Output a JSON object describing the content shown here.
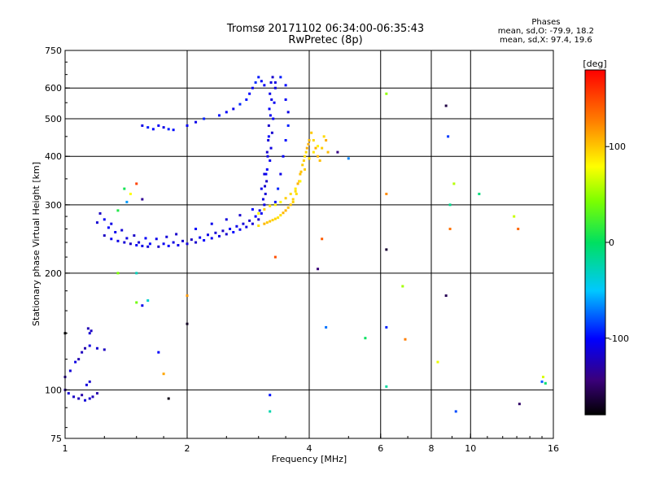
{
  "title": {
    "line1": "Tromsø 20171102 06:34:00-06:35:43",
    "line2": "RwPretec (8p)"
  },
  "phases": {
    "heading": "Phases",
    "o_line": "mean, sd,O: -79.9, 18.2",
    "x_line": "mean, sd,X:  97.4, 19.6"
  },
  "colorbar": {
    "unit": "[deg]",
    "ticks": [
      {
        "value": 100,
        "label": "100"
      },
      {
        "value": 0,
        "label": "0"
      },
      {
        "value": -100,
        "label": "-100"
      }
    ],
    "range": [
      -180,
      180
    ],
    "colormap": "rainbow"
  },
  "chart_data": {
    "type": "scatter",
    "xlabel": "Frequency [MHz]",
    "ylabel": "Stationary phase Virtual Height [km]",
    "xscale": "log2",
    "yscale": "log",
    "xlim": [
      1,
      16
    ],
    "ylim": [
      75,
      750
    ],
    "xticks": [
      {
        "value": 1,
        "label": "1"
      },
      {
        "value": 2,
        "label": "2"
      },
      {
        "value": 4,
        "label": "4"
      },
      {
        "value": 6,
        "label": "6"
      },
      {
        "value": 8,
        "label": "8"
      },
      {
        "value": 10,
        "label": "10"
      },
      {
        "value": 16,
        "label": "16"
      }
    ],
    "xgrid": [
      2,
      4,
      6,
      8,
      10
    ],
    "yticks": [
      {
        "value": 75,
        "label": "75"
      },
      {
        "value": 100,
        "label": "100"
      },
      {
        "value": 200,
        "label": "200"
      },
      {
        "value": 300,
        "label": "300"
      },
      {
        "value": 400,
        "label": "400"
      },
      {
        "value": 500,
        "label": "500"
      },
      {
        "value": 600,
        "label": "600"
      },
      {
        "value": 750,
        "label": "750"
      }
    ],
    "ygrid": [
      100,
      200,
      300,
      400,
      500,
      600
    ],
    "grid": true,
    "series": [
      {
        "trace": "o_mode_f_layer",
        "phase_deg": -110,
        "points": [
          [
            1.25,
            250
          ],
          [
            1.3,
            245
          ],
          [
            1.35,
            242
          ],
          [
            1.4,
            240
          ],
          [
            1.45,
            238
          ],
          [
            1.5,
            236
          ],
          [
            1.55,
            235
          ],
          [
            1.6,
            234
          ],
          [
            1.7,
            234
          ],
          [
            1.8,
            235
          ],
          [
            1.9,
            236
          ],
          [
            2.0,
            238
          ],
          [
            2.1,
            240
          ],
          [
            2.2,
            243
          ],
          [
            2.3,
            246
          ],
          [
            2.4,
            249
          ],
          [
            2.5,
            252
          ],
          [
            2.6,
            255
          ],
          [
            2.7,
            259
          ],
          [
            2.8,
            263
          ],
          [
            2.9,
            268
          ],
          [
            3.0,
            275
          ],
          [
            3.05,
            285
          ],
          [
            3.1,
            300
          ],
          [
            3.12,
            320
          ],
          [
            3.14,
            345
          ],
          [
            3.15,
            370
          ],
          [
            3.16,
            400
          ],
          [
            3.17,
            440
          ],
          [
            3.18,
            480
          ],
          [
            3.19,
            530
          ],
          [
            3.2,
            580
          ],
          [
            3.22,
            620
          ],
          [
            3.25,
            640
          ],
          [
            1.28,
            262
          ],
          [
            1.33,
            255
          ],
          [
            1.42,
            246
          ],
          [
            1.52,
            240
          ],
          [
            1.62,
            238
          ],
          [
            1.75,
            238
          ],
          [
            1.85,
            240
          ],
          [
            1.95,
            242
          ],
          [
            2.05,
            244
          ],
          [
            2.15,
            247
          ],
          [
            2.25,
            251
          ],
          [
            2.35,
            254
          ],
          [
            2.45,
            257
          ],
          [
            2.55,
            260
          ],
          [
            2.65,
            264
          ],
          [
            2.75,
            268
          ],
          [
            2.85,
            273
          ],
          [
            2.95,
            280
          ],
          [
            3.02,
            290
          ],
          [
            3.08,
            310
          ],
          [
            3.11,
            335
          ],
          [
            3.13,
            360
          ],
          [
            3.2,
            390
          ],
          [
            3.22,
            420
          ],
          [
            3.24,
            460
          ],
          [
            3.26,
            500
          ],
          [
            3.28,
            550
          ],
          [
            3.3,
            600
          ],
          [
            1.2,
            270
          ],
          [
            1.22,
            285
          ],
          [
            1.25,
            275
          ],
          [
            1.3,
            268
          ],
          [
            1.38,
            258
          ],
          [
            1.48,
            250
          ],
          [
            1.58,
            246
          ],
          [
            1.68,
            245
          ],
          [
            1.78,
            248
          ],
          [
            1.88,
            252
          ],
          [
            2.1,
            260
          ],
          [
            2.3,
            268
          ],
          [
            2.5,
            275
          ],
          [
            2.7,
            282
          ],
          [
            2.9,
            292
          ],
          [
            3.05,
            330
          ],
          [
            3.1,
            360
          ],
          [
            3.15,
            410
          ],
          [
            3.18,
            450
          ],
          [
            3.21,
            510
          ],
          [
            3.23,
            560
          ]
        ]
      },
      {
        "trace": "o_mode_upper_branch",
        "phase_deg": -100,
        "points": [
          [
            1.55,
            480
          ],
          [
            1.6,
            475
          ],
          [
            1.65,
            470
          ],
          [
            1.7,
            480
          ],
          [
            1.75,
            475
          ],
          [
            1.8,
            470
          ],
          [
            1.85,
            468
          ],
          [
            2.0,
            480
          ],
          [
            2.1,
            490
          ],
          [
            2.2,
            500
          ],
          [
            2.4,
            510
          ],
          [
            2.5,
            520
          ],
          [
            2.6,
            530
          ],
          [
            2.7,
            545
          ],
          [
            2.8,
            560
          ],
          [
            2.85,
            580
          ],
          [
            2.9,
            600
          ],
          [
            2.95,
            620
          ],
          [
            3.0,
            640
          ],
          [
            3.05,
            625
          ],
          [
            3.1,
            610
          ],
          [
            3.3,
            620
          ],
          [
            3.4,
            640
          ],
          [
            3.5,
            610
          ],
          [
            3.5,
            560
          ],
          [
            3.55,
            520
          ],
          [
            3.55,
            480
          ],
          [
            3.5,
            440
          ],
          [
            3.45,
            400
          ],
          [
            3.4,
            360
          ],
          [
            3.35,
            330
          ],
          [
            3.3,
            305
          ]
        ]
      },
      {
        "trace": "x_mode_f_layer",
        "phase_deg": 100,
        "points": [
          [
            3.0,
            265
          ],
          [
            3.1,
            268
          ],
          [
            3.2,
            272
          ],
          [
            3.3,
            276
          ],
          [
            3.4,
            282
          ],
          [
            3.5,
            290
          ],
          [
            3.6,
            300
          ],
          [
            3.65,
            310
          ],
          [
            3.7,
            325
          ],
          [
            3.75,
            340
          ],
          [
            3.8,
            360
          ],
          [
            3.85,
            380
          ],
          [
            3.9,
            400
          ],
          [
            3.95,
            420
          ],
          [
            4.0,
            440
          ],
          [
            4.05,
            460
          ],
          [
            4.1,
            440
          ],
          [
            4.15,
            420
          ],
          [
            4.2,
            400
          ],
          [
            3.15,
            270
          ],
          [
            3.25,
            274
          ],
          [
            3.35,
            278
          ],
          [
            3.45,
            286
          ],
          [
            3.55,
            295
          ],
          [
            3.65,
            305
          ],
          [
            3.72,
            320
          ],
          [
            3.78,
            345
          ],
          [
            3.82,
            365
          ],
          [
            3.88,
            390
          ],
          [
            3.93,
            410
          ],
          [
            3.98,
            430
          ],
          [
            4.25,
            390
          ],
          [
            4.3,
            420
          ],
          [
            4.35,
            450
          ],
          [
            4.4,
            440
          ],
          [
            4.45,
            410
          ]
        ]
      },
      {
        "trace": "x_mode_lower_edge",
        "phase_deg": 90,
        "points": [
          [
            3.0,
            285
          ],
          [
            3.1,
            292
          ],
          [
            3.2,
            298
          ],
          [
            3.3,
            300
          ],
          [
            3.4,
            305
          ],
          [
            3.5,
            312
          ],
          [
            3.6,
            320
          ],
          [
            3.7,
            330
          ],
          [
            3.8,
            345
          ],
          [
            3.9,
            370
          ],
          [
            4.0,
            395
          ],
          [
            4.1,
            410
          ],
          [
            4.2,
            425
          ]
        ]
      },
      {
        "trace": "e_layer_echoes",
        "phase_deg": -120,
        "points": [
          [
            1.0,
            100
          ],
          [
            1.02,
            98
          ],
          [
            1.05,
            96
          ],
          [
            1.08,
            95
          ],
          [
            1.1,
            97
          ],
          [
            1.12,
            94
          ],
          [
            1.15,
            95
          ],
          [
            1.17,
            96
          ],
          [
            1.2,
            98
          ],
          [
            1.13,
            103
          ],
          [
            1.15,
            105
          ],
          [
            1.1,
            125
          ],
          [
            1.12,
            128
          ],
          [
            1.15,
            130
          ],
          [
            1.2,
            128
          ],
          [
            1.25,
            127
          ],
          [
            1.08,
            120
          ],
          [
            1.06,
            118
          ],
          [
            1.15,
            140
          ],
          [
            1.16,
            142
          ],
          [
            1.14,
            144
          ],
          [
            1.0,
            108
          ],
          [
            1.03,
            112
          ]
        ]
      },
      {
        "trace": "scattered",
        "phase_deg": 0,
        "points": [
          [
            1.0,
            140
          ],
          [
            1.55,
            165
          ],
          [
            1.6,
            170
          ],
          [
            1.5,
            168
          ],
          [
            1.75,
            110
          ],
          [
            1.8,
            95
          ],
          [
            1.7,
            125
          ],
          [
            1.5,
            200
          ],
          [
            1.35,
            200
          ],
          [
            2.0,
            175
          ],
          [
            2.0,
            148
          ],
          [
            3.2,
            97
          ],
          [
            3.2,
            88
          ],
          [
            6.2,
            580
          ],
          [
            6.2,
            320
          ],
          [
            6.2,
            230
          ],
          [
            6.2,
            145
          ],
          [
            6.2,
            102
          ],
          [
            6.8,
            185
          ],
          [
            6.9,
            135
          ],
          [
            8.7,
            540
          ],
          [
            8.8,
            450
          ],
          [
            8.9,
            300
          ],
          [
            9.1,
            340
          ],
          [
            8.9,
            260
          ],
          [
            8.7,
            175
          ],
          [
            9.2,
            88
          ],
          [
            10.5,
            320
          ],
          [
            12.8,
            280
          ],
          [
            13.1,
            260
          ],
          [
            13.2,
            92
          ],
          [
            15.0,
            105
          ],
          [
            15.3,
            104
          ],
          [
            15.1,
            108
          ],
          [
            4.3,
            245
          ],
          [
            4.2,
            205
          ],
          [
            4.4,
            145
          ],
          [
            5.5,
            136
          ],
          [
            8.3,
            118
          ],
          [
            3.3,
            220
          ],
          [
            4.7,
            410
          ],
          [
            5.0,
            395
          ],
          [
            1.4,
            330
          ],
          [
            1.45,
            320
          ],
          [
            1.5,
            340
          ],
          [
            1.55,
            310
          ],
          [
            1.42,
            305
          ],
          [
            1.35,
            290
          ]
        ]
      }
    ]
  }
}
